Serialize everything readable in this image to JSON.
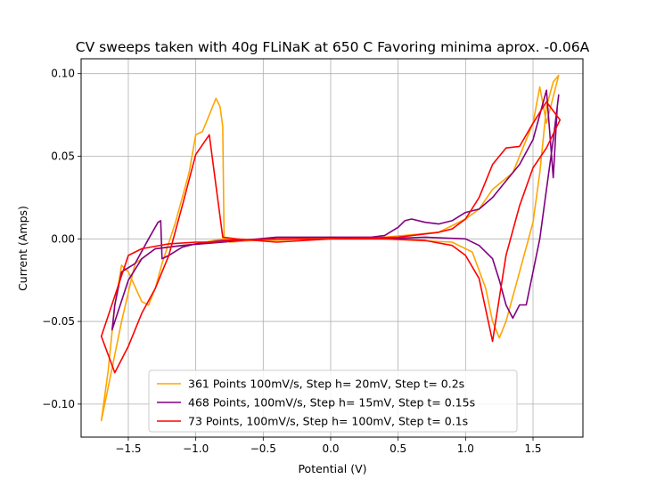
{
  "chart_data": {
    "type": "line",
    "title": "CV sweeps taken with 40g FLiNaK at 650 C Favoring minima aprox. -0.06A",
    "xlabel": "Potential (V)",
    "ylabel": "Current (Amps)",
    "xlim": [
      -1.85,
      1.87
    ],
    "ylim": [
      -0.12,
      0.109
    ],
    "xticks": [
      -1.5,
      -1.0,
      -0.5,
      0.0,
      0.5,
      1.0,
      1.5
    ],
    "xtick_labels": [
      "−1.5",
      "−1.0",
      "−0.5",
      "0.0",
      "0.5",
      "1.0",
      "1.5"
    ],
    "yticks": [
      -0.1,
      -0.05,
      0.0,
      0.05,
      0.1
    ],
    "ytick_labels": [
      "−0.10",
      "−0.05",
      "0.00",
      "0.05",
      "0.10"
    ],
    "grid": true,
    "legend_position": "lower center",
    "series": [
      {
        "name": "361 Points 100mV/s, Step h= 20mV, Step t= 0.2s",
        "color": "#ffa500",
        "points": [
          [
            -0.8,
            0.0
          ],
          [
            -0.4,
            -0.001
          ],
          [
            0.0,
            0.001
          ],
          [
            0.4,
            0.0
          ],
          [
            0.9,
            -0.002
          ],
          [
            1.05,
            -0.008
          ],
          [
            1.15,
            -0.03
          ],
          [
            1.2,
            -0.05
          ],
          [
            1.25,
            -0.06
          ],
          [
            1.3,
            -0.05
          ],
          [
            1.4,
            -0.02
          ],
          [
            1.5,
            0.01
          ],
          [
            1.55,
            0.04
          ],
          [
            1.6,
            0.08
          ],
          [
            1.65,
            0.095
          ],
          [
            1.69,
            0.099
          ],
          [
            1.6,
            0.07
          ],
          [
            1.55,
            0.092
          ],
          [
            1.5,
            0.07
          ],
          [
            1.45,
            0.06
          ],
          [
            1.35,
            0.04
          ],
          [
            1.2,
            0.03
          ],
          [
            1.1,
            0.018
          ],
          [
            1.0,
            0.012
          ],
          [
            0.8,
            0.004
          ],
          [
            0.4,
            0.001
          ],
          [
            -0.4,
            0.0
          ],
          [
            -0.75,
            -0.002
          ],
          [
            -0.79,
            0.0
          ],
          [
            -0.8,
            0.068
          ],
          [
            -0.82,
            0.08
          ],
          [
            -0.85,
            0.085
          ],
          [
            -0.9,
            0.075
          ],
          [
            -0.95,
            0.065
          ],
          [
            -1.0,
            0.063
          ],
          [
            -1.05,
            0.04
          ],
          [
            -1.15,
            0.01
          ],
          [
            -1.25,
            -0.015
          ],
          [
            -1.3,
            -0.03
          ],
          [
            -1.35,
            -0.04
          ],
          [
            -1.4,
            -0.038
          ],
          [
            -1.5,
            -0.02
          ],
          [
            -1.55,
            -0.016
          ],
          [
            -1.6,
            -0.04
          ],
          [
            -1.65,
            -0.08
          ],
          [
            -1.7,
            -0.11
          ],
          [
            -1.65,
            -0.09
          ],
          [
            -1.55,
            -0.05
          ],
          [
            -1.45,
            -0.015
          ],
          [
            -1.3,
            -0.006
          ],
          [
            -1.0,
            -0.003
          ],
          [
            -0.8,
            0.0
          ]
        ]
      },
      {
        "name": "468 Points, 100mV/s, Step h= 15mV, Step t= 0.15s",
        "color": "#800080",
        "points": [
          [
            -0.8,
            -0.002
          ],
          [
            -0.4,
            0.001
          ],
          [
            0.0,
            0.001
          ],
          [
            0.3,
            0.001
          ],
          [
            0.4,
            0.002
          ],
          [
            0.5,
            0.007
          ],
          [
            0.55,
            0.011
          ],
          [
            0.6,
            0.012
          ],
          [
            0.7,
            0.01
          ],
          [
            0.8,
            0.009
          ],
          [
            0.9,
            0.011
          ],
          [
            1.0,
            0.016
          ],
          [
            1.1,
            0.018
          ],
          [
            1.2,
            0.025
          ],
          [
            1.3,
            0.035
          ],
          [
            1.4,
            0.045
          ],
          [
            1.5,
            0.06
          ],
          [
            1.6,
            0.09
          ],
          [
            1.65,
            0.037
          ],
          [
            1.68,
            0.08
          ],
          [
            1.69,
            0.087
          ],
          [
            1.65,
            0.06
          ],
          [
            1.6,
            0.03
          ],
          [
            1.55,
            0.0
          ],
          [
            1.5,
            -0.02
          ],
          [
            1.45,
            -0.04
          ],
          [
            1.4,
            -0.04
          ],
          [
            1.35,
            -0.048
          ],
          [
            1.3,
            -0.04
          ],
          [
            1.25,
            -0.025
          ],
          [
            1.2,
            -0.012
          ],
          [
            1.1,
            -0.004
          ],
          [
            1.0,
            0.0
          ],
          [
            0.7,
            0.001
          ],
          [
            0.4,
            0.0
          ],
          [
            0.0,
            0.0
          ],
          [
            -0.4,
            0.0
          ],
          [
            -0.8,
            -0.001
          ],
          [
            -1.0,
            -0.003
          ],
          [
            -1.1,
            -0.005
          ],
          [
            -1.2,
            -0.01
          ],
          [
            -1.25,
            -0.012
          ],
          [
            -1.26,
            0.011
          ],
          [
            -1.28,
            0.01
          ],
          [
            -1.35,
            0.0
          ],
          [
            -1.45,
            -0.015
          ],
          [
            -1.55,
            -0.02
          ],
          [
            -1.6,
            -0.04
          ],
          [
            -1.62,
            -0.055
          ],
          [
            -1.6,
            -0.05
          ],
          [
            -1.5,
            -0.025
          ],
          [
            -1.4,
            -0.012
          ],
          [
            -1.3,
            -0.006
          ],
          [
            -1.1,
            -0.004
          ],
          [
            -0.8,
            -0.002
          ]
        ]
      },
      {
        "name": "73 Points, 100mV/s, Step h= 100mV, Step t= 0.1s",
        "color": "#ff0000",
        "points": [
          [
            -0.4,
            -0.002
          ],
          [
            0.0,
            0.0
          ],
          [
            0.5,
            0.001
          ],
          [
            0.8,
            0.004
          ],
          [
            0.9,
            0.006
          ],
          [
            1.0,
            0.012
          ],
          [
            1.1,
            0.025
          ],
          [
            1.2,
            0.045
          ],
          [
            1.3,
            0.055
          ],
          [
            1.4,
            0.056
          ],
          [
            1.5,
            0.07
          ],
          [
            1.6,
            0.083
          ],
          [
            1.7,
            0.072
          ],
          [
            1.6,
            0.055
          ],
          [
            1.5,
            0.043
          ],
          [
            1.4,
            0.02
          ],
          [
            1.3,
            -0.01
          ],
          [
            1.2,
            -0.062
          ],
          [
            1.1,
            -0.024
          ],
          [
            1.0,
            -0.01
          ],
          [
            0.9,
            -0.004
          ],
          [
            0.7,
            -0.001
          ],
          [
            0.4,
            0.0
          ],
          [
            0.0,
            0.0
          ],
          [
            -0.4,
            0.0
          ],
          [
            -0.7,
            -0.001
          ],
          [
            -0.9,
            -0.002
          ],
          [
            -1.0,
            -0.002
          ],
          [
            -1.2,
            -0.003
          ],
          [
            -1.4,
            -0.006
          ],
          [
            -1.5,
            -0.01
          ],
          [
            -1.7,
            -0.059
          ],
          [
            -1.6,
            -0.081
          ],
          [
            -1.5,
            -0.065
          ],
          [
            -1.4,
            -0.045
          ],
          [
            -1.3,
            -0.03
          ],
          [
            -1.2,
            -0.01
          ],
          [
            -1.1,
            0.02
          ],
          [
            -1.0,
            0.051
          ],
          [
            -0.9,
            0.063
          ],
          [
            -0.8,
            0.001
          ],
          [
            -0.7,
            0.0
          ],
          [
            -0.4,
            -0.002
          ]
        ]
      }
    ]
  }
}
